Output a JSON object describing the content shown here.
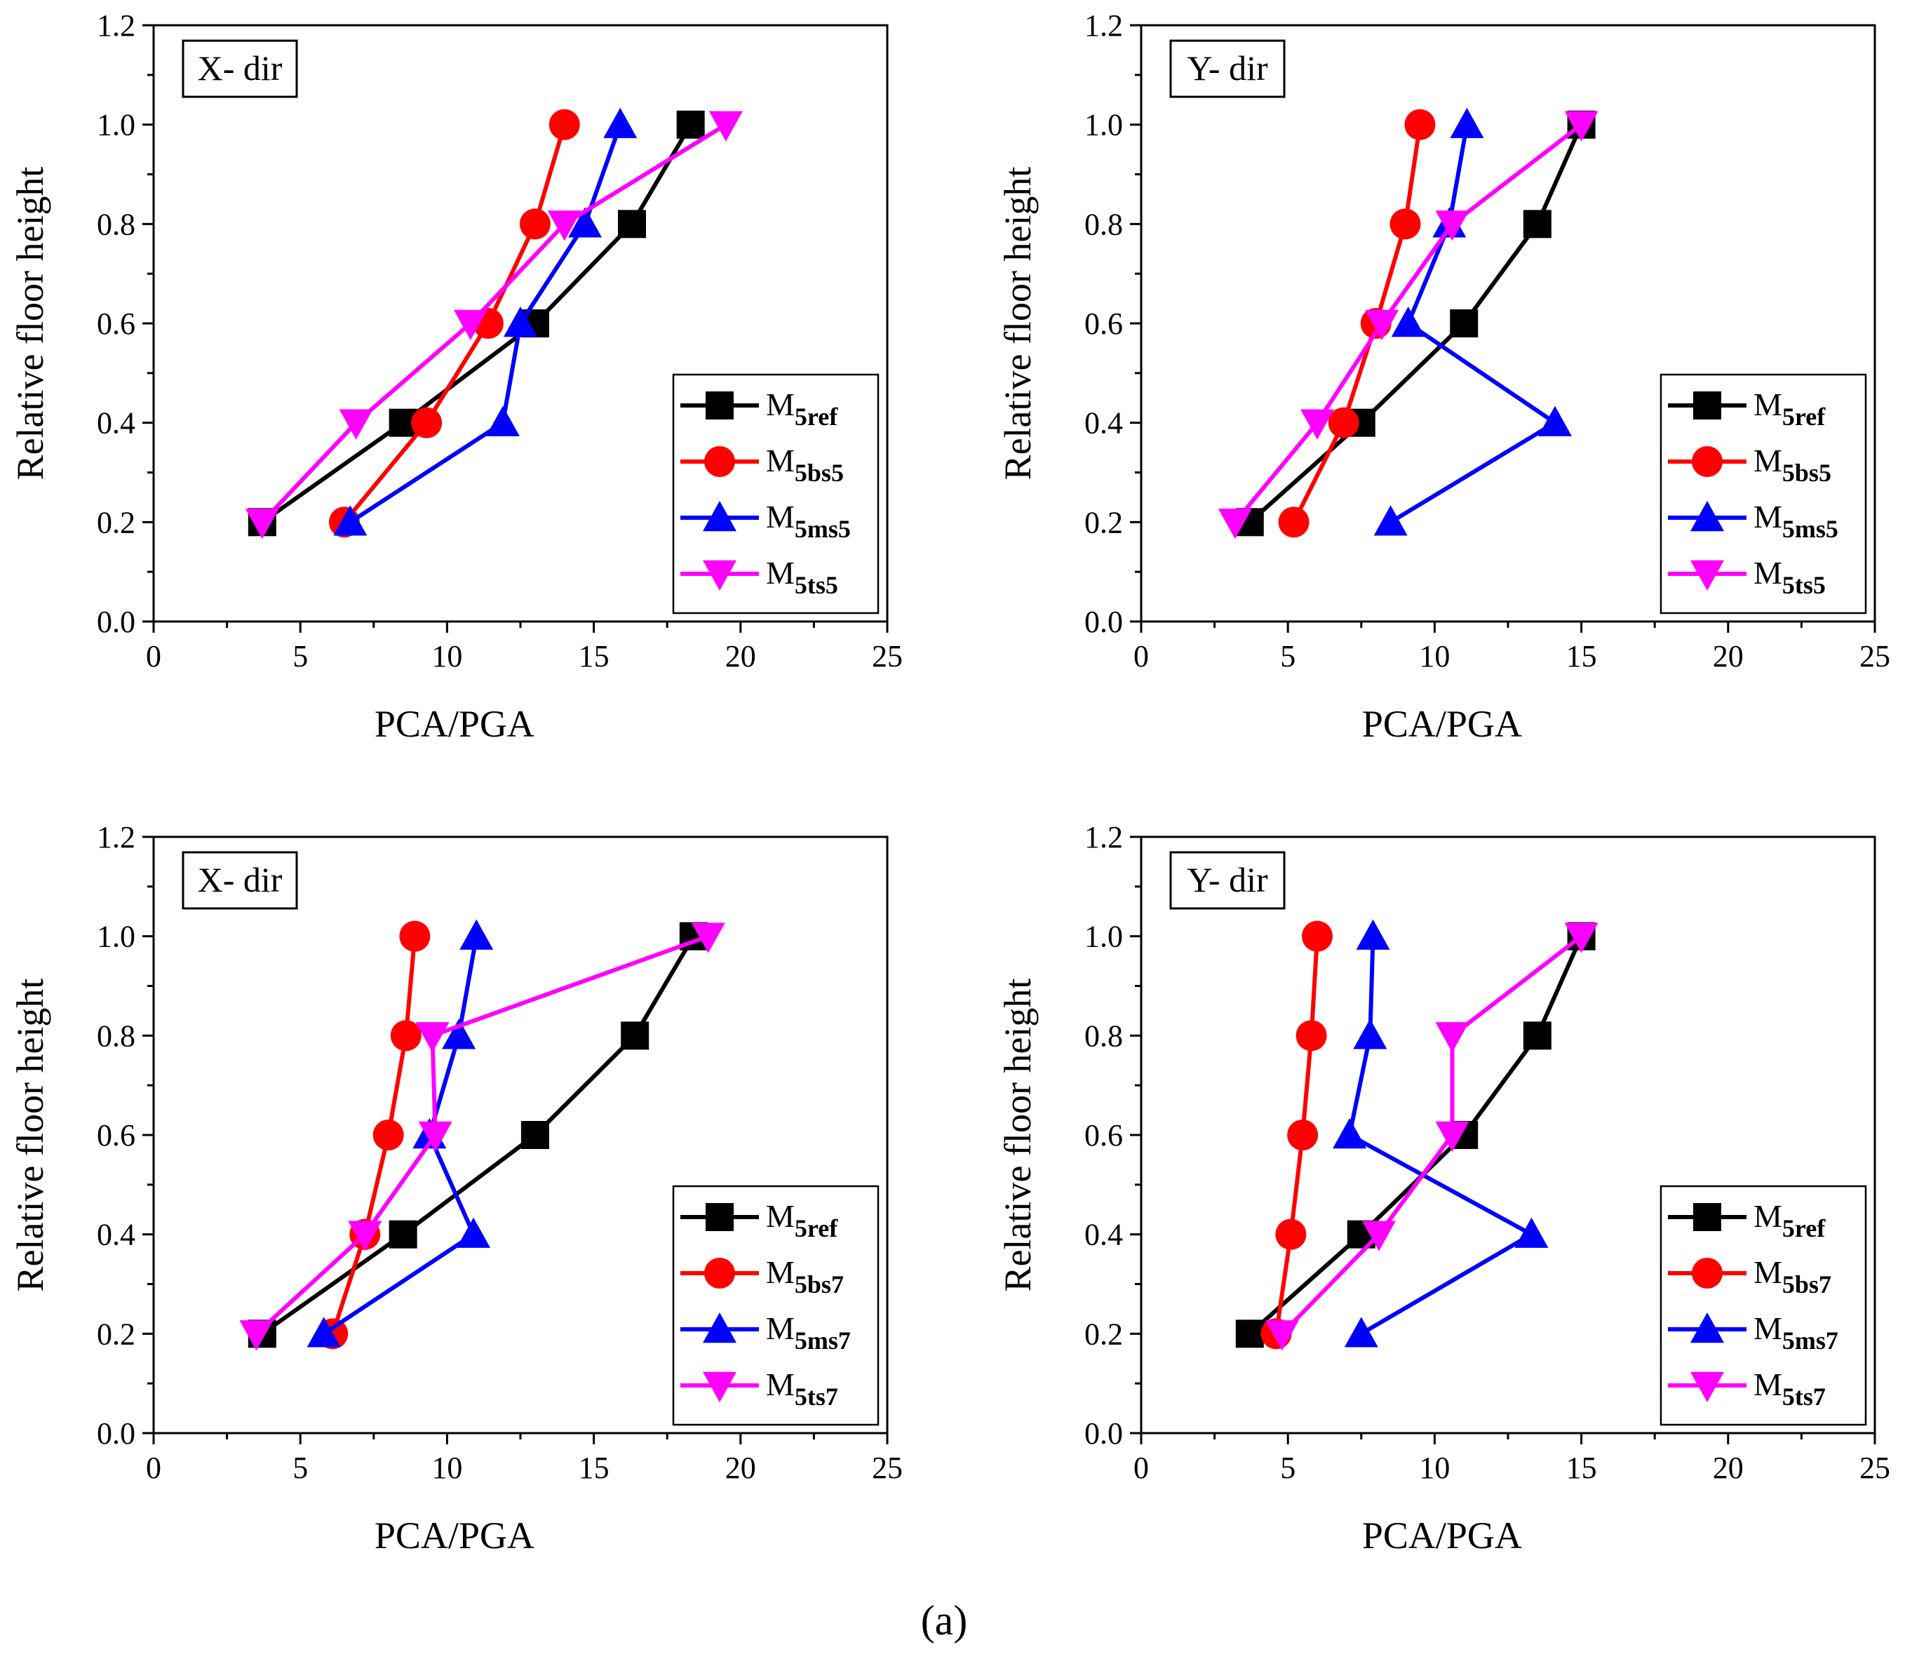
{
  "caption": "(a)",
  "colors": {
    "ref": "#000000",
    "bs": "#ff0000",
    "ms": "#0000ff",
    "ts": "#ff00ff"
  },
  "chart_data": [
    {
      "type": "line",
      "direction_label": "X- dir",
      "xlabel": "PCA/PGA",
      "ylabel": "Relative floor height",
      "xlim": [
        0,
        25
      ],
      "ylim": [
        0,
        1.2
      ],
      "xticks": [
        "0",
        "5",
        "10",
        "15",
        "20",
        "25"
      ],
      "yticks": [
        "0.0",
        "0.2",
        "0.4",
        "0.6",
        "0.8",
        "1.0",
        "1.2"
      ],
      "legend_position": "lower-right",
      "series": [
        {
          "name": "M5ref",
          "base": "M",
          "sub": "5ref",
          "marker": "square",
          "color_key": "ref",
          "x": [
            3.7,
            8.5,
            13.0,
            16.3,
            18.3
          ],
          "y": [
            0.2,
            0.4,
            0.6,
            0.8,
            1.0
          ]
        },
        {
          "name": "M5bs5",
          "base": "M",
          "sub": "5bs5",
          "marker": "circle",
          "color_key": "bs",
          "x": [
            6.5,
            9.3,
            11.4,
            13.0,
            14.0
          ],
          "y": [
            0.2,
            0.4,
            0.6,
            0.8,
            1.0
          ]
        },
        {
          "name": "M5ms5",
          "base": "M",
          "sub": "5ms5",
          "marker": "triangle-up",
          "color_key": "ms",
          "x": [
            6.7,
            11.9,
            12.5,
            14.7,
            15.9
          ],
          "y": [
            0.2,
            0.4,
            0.6,
            0.8,
            1.0
          ]
        },
        {
          "name": "M5ts5",
          "base": "M",
          "sub": "5ts5",
          "marker": "triangle-down",
          "color_key": "ts",
          "x": [
            3.7,
            6.9,
            10.8,
            14.0,
            19.5
          ],
          "y": [
            0.2,
            0.4,
            0.6,
            0.8,
            1.0
          ]
        }
      ]
    },
    {
      "type": "line",
      "direction_label": "Y- dir",
      "xlabel": "PCA/PGA",
      "ylabel": "Relative floor height",
      "xlim": [
        0,
        25
      ],
      "ylim": [
        0,
        1.2
      ],
      "xticks": [
        "0",
        "5",
        "10",
        "15",
        "20",
        "25"
      ],
      "yticks": [
        "0.0",
        "0.2",
        "0.4",
        "0.6",
        "0.8",
        "1.0",
        "1.2"
      ],
      "legend_position": "lower-right",
      "series": [
        {
          "name": "M5ref",
          "base": "M",
          "sub": "5ref",
          "marker": "square",
          "color_key": "ref",
          "x": [
            3.7,
            7.5,
            11.0,
            13.5,
            15.0
          ],
          "y": [
            0.2,
            0.4,
            0.6,
            0.8,
            1.0
          ]
        },
        {
          "name": "M5bs5",
          "base": "M",
          "sub": "5bs5",
          "marker": "circle",
          "color_key": "bs",
          "x": [
            5.2,
            6.9,
            8.0,
            9.0,
            9.5
          ],
          "y": [
            0.2,
            0.4,
            0.6,
            0.8,
            1.0
          ]
        },
        {
          "name": "M5ms5",
          "base": "M",
          "sub": "5ms5",
          "marker": "triangle-up",
          "color_key": "ms",
          "x": [
            8.5,
            14.1,
            9.1,
            10.5,
            11.1
          ],
          "y": [
            0.2,
            0.4,
            0.6,
            0.8,
            1.0
          ]
        },
        {
          "name": "M5ts5",
          "base": "M",
          "sub": "5ts5",
          "marker": "triangle-down",
          "color_key": "ts",
          "x": [
            3.2,
            6.0,
            8.2,
            10.6,
            15.0
          ],
          "y": [
            0.2,
            0.4,
            0.6,
            0.8,
            1.0
          ]
        }
      ]
    },
    {
      "type": "line",
      "direction_label": "X- dir",
      "xlabel": "PCA/PGA",
      "ylabel": "Relative floor height",
      "xlim": [
        0,
        25
      ],
      "ylim": [
        0,
        1.2
      ],
      "xticks": [
        "0",
        "5",
        "10",
        "15",
        "20",
        "25"
      ],
      "yticks": [
        "0.0",
        "0.2",
        "0.4",
        "0.6",
        "0.8",
        "1.0",
        "1.2"
      ],
      "legend_position": "lower-right",
      "series": [
        {
          "name": "M5ref",
          "base": "M",
          "sub": "5ref",
          "marker": "square",
          "color_key": "ref",
          "x": [
            3.7,
            8.5,
            13.0,
            16.4,
            18.4
          ],
          "y": [
            0.2,
            0.4,
            0.6,
            0.8,
            1.0
          ]
        },
        {
          "name": "M5bs7",
          "base": "M",
          "sub": "5bs7",
          "marker": "circle",
          "color_key": "bs",
          "x": [
            6.1,
            7.2,
            8.0,
            8.6,
            8.9
          ],
          "y": [
            0.2,
            0.4,
            0.6,
            0.8,
            1.0
          ]
        },
        {
          "name": "M5ms7",
          "base": "M",
          "sub": "5ms7",
          "marker": "triangle-up",
          "color_key": "ms",
          "x": [
            5.8,
            10.9,
            9.4,
            10.4,
            11.0
          ],
          "y": [
            0.2,
            0.4,
            0.6,
            0.8,
            1.0
          ]
        },
        {
          "name": "M5ts7",
          "base": "M",
          "sub": "5ts7",
          "marker": "triangle-down",
          "color_key": "ts",
          "x": [
            3.5,
            7.2,
            9.6,
            9.5,
            18.9
          ],
          "y": [
            0.2,
            0.4,
            0.6,
            0.8,
            1.0
          ]
        }
      ]
    },
    {
      "type": "line",
      "direction_label": "Y- dir",
      "xlabel": "PCA/PGA",
      "ylabel": "Relative floor height",
      "xlim": [
        0,
        25
      ],
      "ylim": [
        0,
        1.2
      ],
      "xticks": [
        "0",
        "5",
        "10",
        "15",
        "20",
        "25"
      ],
      "yticks": [
        "0.0",
        "0.2",
        "0.4",
        "0.6",
        "0.8",
        "1.0",
        "1.2"
      ],
      "legend_position": "lower-right",
      "series": [
        {
          "name": "M5ref",
          "base": "M",
          "sub": "5ref",
          "marker": "square",
          "color_key": "ref",
          "x": [
            3.7,
            7.5,
            11.0,
            13.5,
            15.0
          ],
          "y": [
            0.2,
            0.4,
            0.6,
            0.8,
            1.0
          ]
        },
        {
          "name": "M5bs7",
          "base": "M",
          "sub": "5bs7",
          "marker": "circle",
          "color_key": "bs",
          "x": [
            4.6,
            5.1,
            5.5,
            5.8,
            6.0
          ],
          "y": [
            0.2,
            0.4,
            0.6,
            0.8,
            1.0
          ]
        },
        {
          "name": "M5ms7",
          "base": "M",
          "sub": "5ms7",
          "marker": "triangle-up",
          "color_key": "ms",
          "x": [
            7.5,
            13.3,
            7.1,
            7.8,
            7.9
          ],
          "y": [
            0.2,
            0.4,
            0.6,
            0.8,
            1.0
          ]
        },
        {
          "name": "M5ts7",
          "base": "M",
          "sub": "5ts7",
          "marker": "triangle-down",
          "color_key": "ts",
          "x": [
            4.8,
            8.1,
            10.6,
            10.6,
            15.0
          ],
          "y": [
            0.2,
            0.4,
            0.6,
            0.8,
            1.0
          ]
        }
      ]
    }
  ]
}
